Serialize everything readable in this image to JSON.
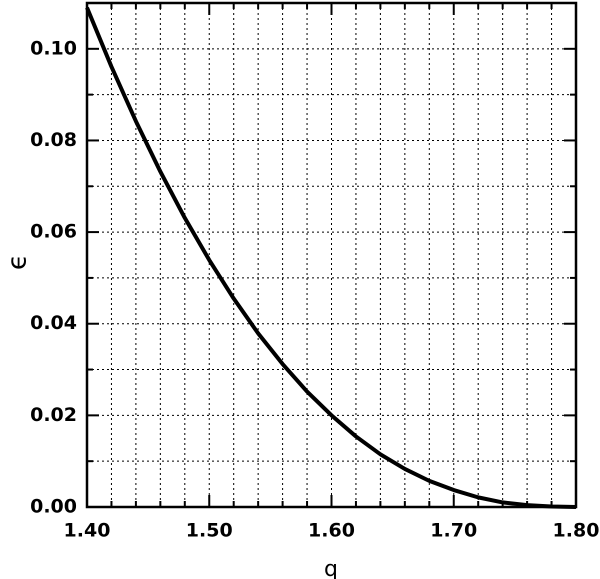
{
  "chart_data": {
    "type": "line",
    "xlabel": "q",
    "ylabel": "ϵ",
    "x": [
      1.4,
      1.42,
      1.44,
      1.46,
      1.48,
      1.5,
      1.52,
      1.54,
      1.56,
      1.58,
      1.6,
      1.62,
      1.64,
      1.66,
      1.68,
      1.7,
      1.72,
      1.74,
      1.76,
      1.78,
      1.8
    ],
    "series": [
      {
        "color": "#000000",
        "values": [
          0.109,
          0.0961,
          0.0842,
          0.0732,
          0.0631,
          0.0539,
          0.0455,
          0.0379,
          0.0312,
          0.0252,
          0.02,
          0.0154,
          0.0115,
          0.0083,
          0.0057,
          0.0037,
          0.0021,
          0.001,
          0.0004,
          0.0001,
          0.0
        ]
      }
    ],
    "xlim": [
      1.4,
      1.8
    ],
    "ylim": [
      0.0,
      0.11
    ],
    "xticks": [
      {
        "value": 1.4,
        "label": "1.40"
      },
      {
        "value": 1.5,
        "label": "1.50"
      },
      {
        "value": 1.6,
        "label": "1.60"
      },
      {
        "value": 1.7,
        "label": "1.70"
      },
      {
        "value": 1.8,
        "label": "1.80"
      }
    ],
    "yticks": [
      {
        "value": 0.0,
        "label": "0.00"
      },
      {
        "value": 0.02,
        "label": "0.02"
      },
      {
        "value": 0.04,
        "label": "0.04"
      },
      {
        "value": 0.06,
        "label": "0.06"
      },
      {
        "value": 0.08,
        "label": "0.08"
      },
      {
        "value": 0.1,
        "label": "0.10"
      }
    ],
    "x_minor_ticks": [
      1.42,
      1.44,
      1.46,
      1.48,
      1.52,
      1.54,
      1.56,
      1.58,
      1.62,
      1.64,
      1.66,
      1.68,
      1.72,
      1.74,
      1.76,
      1.78
    ],
    "y_minor_ticks": [
      0.01,
      0.03,
      0.05,
      0.07,
      0.09
    ],
    "grid": true
  }
}
